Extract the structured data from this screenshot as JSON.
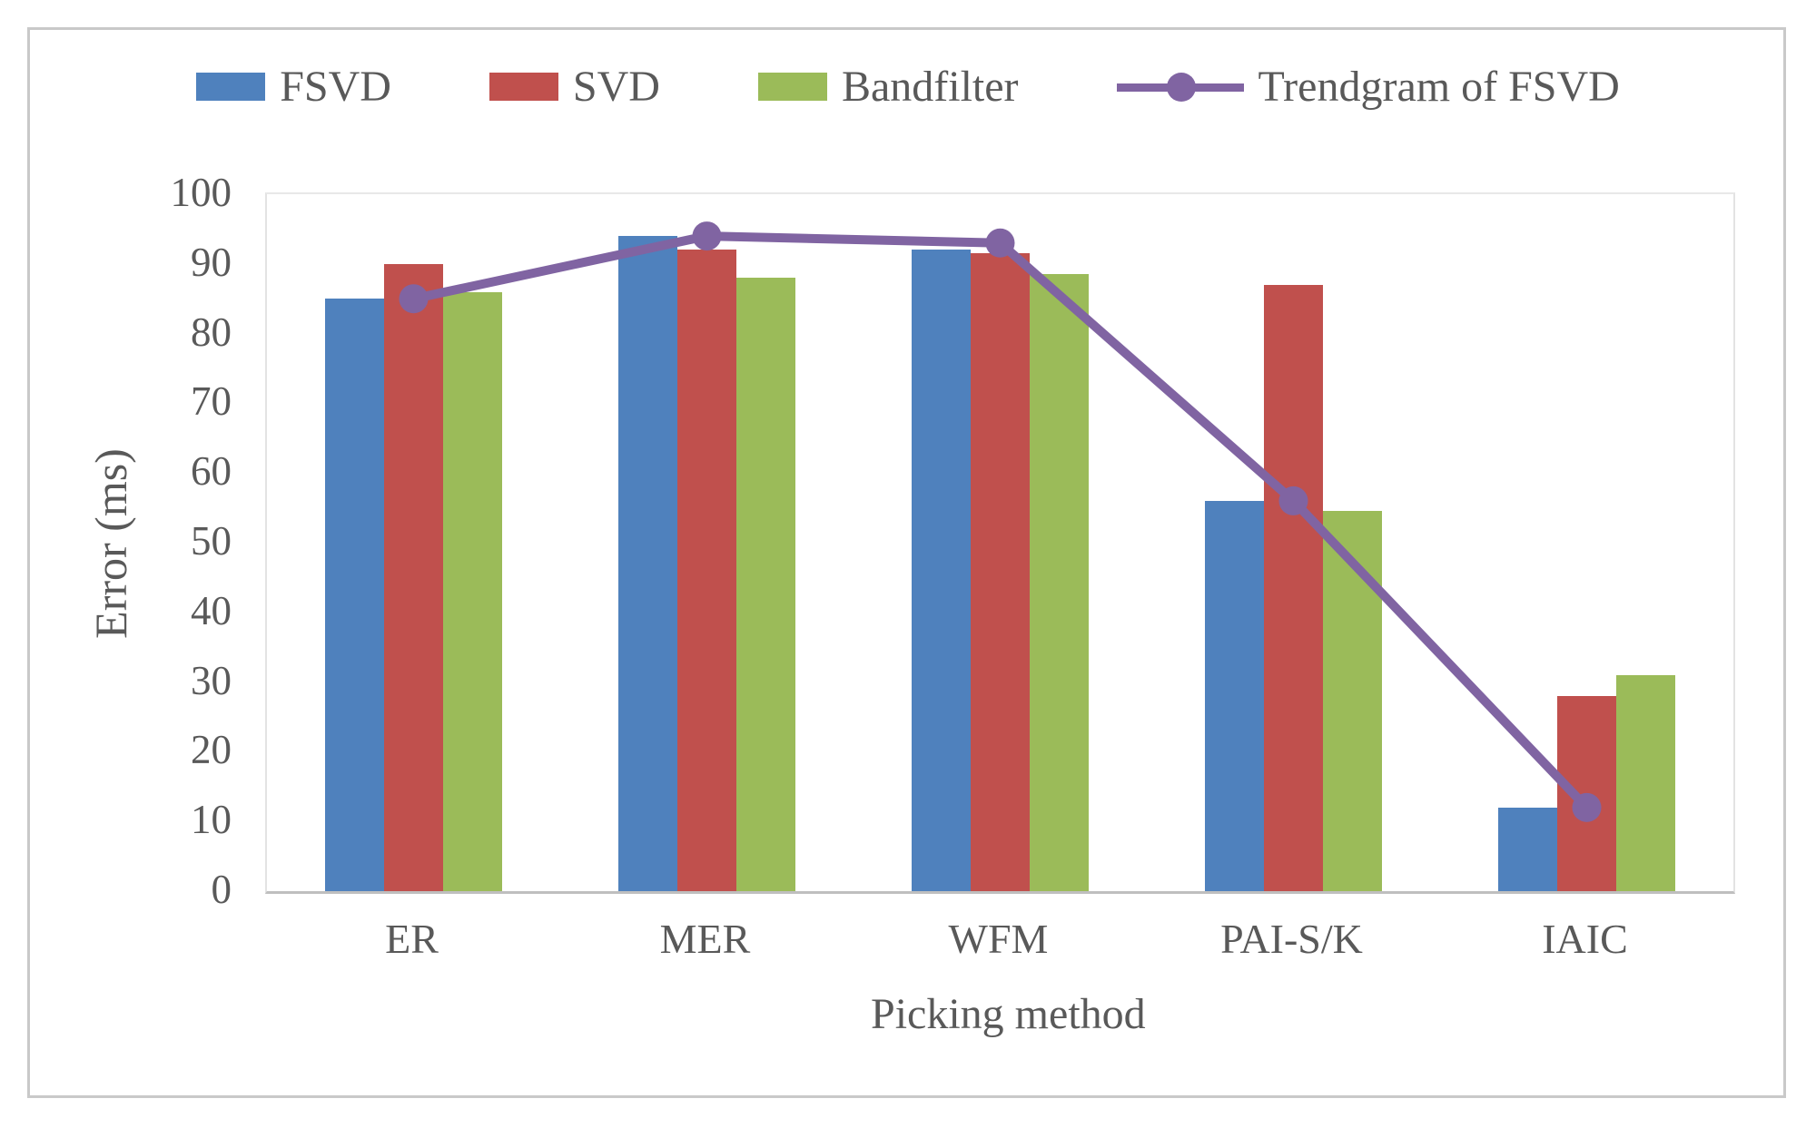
{
  "figure": {
    "frame_border_color": "#C9C9C9",
    "background_color": "#FFFFFF",
    "text_color": "#595959",
    "axis_line_color": "#BFBFBF"
  },
  "chart_data": {
    "type": "bar",
    "title": "",
    "xlabel": "Picking method",
    "ylabel": "Error (ms)",
    "categories": [
      "ER",
      "MER",
      "WFM",
      "PAI-S/K",
      "IAIC"
    ],
    "series": [
      {
        "name": "FSVD",
        "type": "bar",
        "color": "#4F81BD",
        "values": [
          85,
          94,
          92,
          56,
          12
        ]
      },
      {
        "name": "SVD",
        "type": "bar",
        "color": "#C0504D",
        "values": [
          90,
          92,
          91.5,
          87,
          28
        ]
      },
      {
        "name": "Bandfilter",
        "type": "bar",
        "color": "#9BBB59",
        "values": [
          86,
          88,
          88.5,
          54.5,
          31
        ]
      },
      {
        "name": "Trendgram of FSVD",
        "type": "line",
        "color": "#8064A2",
        "marker": "circle",
        "values": [
          85,
          94,
          93,
          56,
          12
        ]
      }
    ],
    "ylim": [
      0,
      100
    ],
    "yticks": [
      0,
      10,
      20,
      30,
      40,
      50,
      60,
      70,
      80,
      90,
      100
    ],
    "grid": false,
    "legend_position": "top"
  }
}
